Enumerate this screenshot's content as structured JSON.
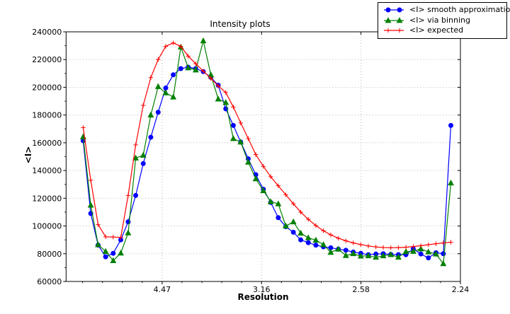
{
  "title": "Intensity plots",
  "legend": {
    "items": [
      {
        "label": "<I> smooth approximation",
        "series_index": 0
      },
      {
        "label": "<I> via binning",
        "series_index": 1
      },
      {
        "label": "<I> expected",
        "series_index": 2
      }
    ]
  },
  "colors": {
    "blue_series": "#0000ff",
    "green_series": "#008000",
    "red_series": "#ff0000",
    "grid": "#b8b8b8",
    "axis": "#000000",
    "background": "#ffffff"
  },
  "chart_data": {
    "type": "line",
    "title": "Intensity plots",
    "xlabel": "Resolution",
    "ylabel": "<I>",
    "x_axis_note": "x axis is linear in 1/d^2 (A^-2); tick labels show resolution d in Angstrom",
    "x_range": [
      0.0017,
      0.2
    ],
    "ylim": [
      60000,
      240000
    ],
    "x_tick_values": [
      0.05,
      0.1,
      0.15,
      0.2
    ],
    "x_tick_labels": [
      "4.47",
      "3.16",
      "2.58",
      "2.24"
    ],
    "x_minor_step": 0.01,
    "y_ticks": [
      60000,
      80000,
      100000,
      120000,
      140000,
      160000,
      180000,
      200000,
      220000,
      240000
    ],
    "y_minor_step": 10000,
    "grid": true,
    "legend_position": "top-right",
    "x": [
      0.0103,
      0.0141,
      0.0178,
      0.0216,
      0.0254,
      0.0292,
      0.0329,
      0.0367,
      0.0405,
      0.0443,
      0.048,
      0.0518,
      0.0556,
      0.0594,
      0.0631,
      0.0669,
      0.0707,
      0.0745,
      0.0782,
      0.082,
      0.0858,
      0.0895,
      0.0933,
      0.0971,
      0.1009,
      0.1046,
      0.1084,
      0.1122,
      0.116,
      0.1197,
      0.1235,
      0.1273,
      0.1311,
      0.1348,
      0.1386,
      0.1424,
      0.1461,
      0.1499,
      0.1537,
      0.1575,
      0.1612,
      0.165,
      0.1688,
      0.1726,
      0.1763,
      0.1801,
      0.1839,
      0.1877,
      0.1914,
      0.1952
    ],
    "series": [
      {
        "name": "<I> smooth approximation",
        "color": "#0000ff",
        "marker": "circle",
        "values": [
          161500,
          109000,
          86200,
          77800,
          80300,
          90000,
          103000,
          122000,
          145000,
          164000,
          182000,
          199500,
          209000,
          213500,
          214500,
          213500,
          211300,
          207200,
          201500,
          184500,
          172500,
          160500,
          148500,
          137000,
          126500,
          117000,
          106000,
          99500,
          95500,
          90000,
          88000,
          86200,
          85000,
          84300,
          83300,
          82500,
          81200,
          80300,
          79300,
          79800,
          80000,
          79500,
          79400,
          79300,
          83500,
          79800,
          77000,
          80700,
          80000,
          172500
        ]
      },
      {
        "name": "<I> via binning",
        "color": "#008000",
        "marker": "triangle",
        "values": [
          164300,
          115000,
          86500,
          81600,
          75000,
          80500,
          95000,
          149000,
          151000,
          180000,
          200500,
          196000,
          193000,
          229000,
          214000,
          212500,
          233500,
          209000,
          191500,
          189000,
          163000,
          160500,
          146000,
          134000,
          125500,
          117500,
          116000,
          100000,
          103000,
          94800,
          91500,
          89800,
          86500,
          81000,
          83300,
          78700,
          80000,
          78300,
          78500,
          77500,
          78500,
          79300,
          77500,
          81500,
          81700,
          83500,
          81300,
          79800,
          72800,
          131000
        ]
      },
      {
        "name": "<I> expected",
        "color": "#ff0000",
        "marker": "plus",
        "values": [
          171000,
          133000,
          101000,
          92200,
          92000,
          91800,
          122000,
          158500,
          187000,
          207000,
          220000,
          229500,
          232000,
          229500,
          222500,
          217000,
          211700,
          206400,
          201000,
          196300,
          185800,
          174300,
          163000,
          151500,
          143000,
          135500,
          129000,
          122500,
          116000,
          110000,
          104800,
          100300,
          96600,
          93600,
          91200,
          89300,
          87800,
          86600,
          85600,
          84900,
          84500,
          84300,
          84400,
          84700,
          85200,
          85800,
          86500,
          87200,
          87800,
          88300
        ]
      }
    ]
  }
}
